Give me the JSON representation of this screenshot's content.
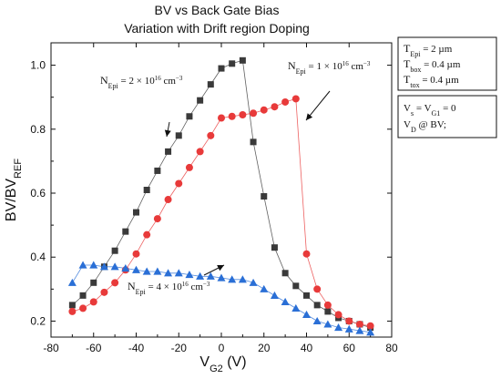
{
  "chart_data": {
    "type": "line",
    "title": "BV vs Back Gate Bias",
    "subtitle": "Variation with Drift region Doping",
    "xlabel": {
      "main": "V",
      "sub": "G2",
      "unit": " (V)"
    },
    "ylabel": {
      "main": "BV/BV",
      "sub": "REF"
    },
    "xlim": [
      -80,
      80
    ],
    "ylim": [
      0.15,
      1.07
    ],
    "xticks": [
      -80,
      -60,
      -40,
      -20,
      0,
      20,
      40,
      60,
      80
    ],
    "yticks": [
      0.2,
      0.4,
      0.6,
      0.8,
      1.0
    ],
    "ytick_labels": [
      "0.2",
      "0.4",
      "0.6",
      "0.8",
      "1.0"
    ],
    "grid": false,
    "series": [
      {
        "id": "n2e16",
        "color": "#3a3a3a",
        "marker": "square",
        "x": [
          -70,
          -65,
          -60,
          -55,
          -50,
          -45,
          -40,
          -35,
          -30,
          -25,
          -20,
          -15,
          -10,
          -5,
          0,
          5,
          10,
          15,
          20,
          25,
          30,
          35,
          40,
          45,
          50,
          55,
          60,
          65,
          70
        ],
        "y": [
          0.25,
          0.28,
          0.32,
          0.37,
          0.42,
          0.48,
          0.54,
          0.61,
          0.67,
          0.73,
          0.78,
          0.84,
          0.89,
          0.94,
          0.99,
          1.005,
          1.015,
          0.76,
          0.59,
          0.43,
          0.35,
          0.31,
          0.28,
          0.25,
          0.23,
          0.21,
          0.2,
          0.19,
          0.18
        ]
      },
      {
        "id": "n1e16",
        "color": "#e83a3a",
        "marker": "circle",
        "x": [
          -70,
          -65,
          -60,
          -55,
          -50,
          -45,
          -40,
          -35,
          -30,
          -25,
          -20,
          -15,
          -10,
          -5,
          0,
          5,
          10,
          15,
          20,
          25,
          30,
          35,
          40,
          45,
          50,
          55,
          60,
          65,
          70
        ],
        "y": [
          0.23,
          0.24,
          0.26,
          0.29,
          0.32,
          0.36,
          0.41,
          0.47,
          0.52,
          0.58,
          0.63,
          0.68,
          0.73,
          0.78,
          0.835,
          0.84,
          0.845,
          0.85,
          0.86,
          0.87,
          0.885,
          0.895,
          0.41,
          0.3,
          0.25,
          0.22,
          0.2,
          0.19,
          0.185
        ]
      },
      {
        "id": "n4e16",
        "color": "#2a6fd6",
        "marker": "triangle",
        "x": [
          -70,
          -65,
          -60,
          -55,
          -50,
          -45,
          -40,
          -35,
          -30,
          -25,
          -20,
          -15,
          -10,
          -5,
          0,
          5,
          10,
          15,
          20,
          25,
          30,
          35,
          40,
          45,
          50,
          55,
          60,
          65,
          70
        ],
        "y": [
          0.32,
          0.375,
          0.375,
          0.37,
          0.37,
          0.365,
          0.36,
          0.355,
          0.355,
          0.35,
          0.35,
          0.345,
          0.34,
          0.34,
          0.335,
          0.33,
          0.33,
          0.32,
          0.3,
          0.28,
          0.26,
          0.24,
          0.22,
          0.2,
          0.19,
          0.18,
          0.175,
          0.17,
          0.165
        ]
      }
    ],
    "annotations": [
      {
        "id": "n2e16",
        "base": "N",
        "sub": "Epi",
        "text": " = 2 × 10",
        "sup": "16",
        "unit": " cm",
        "unitsup": "−3"
      },
      {
        "id": "n1e16",
        "base": "N",
        "sub": "Epi",
        "text": " = 1 × 10",
        "sup": "16",
        "unit": " cm",
        "unitsup": "−3"
      },
      {
        "id": "n4e16",
        "base": "N",
        "sub": "Epi",
        "text": " = 4 × 10",
        "sup": "16",
        "unit": " cm",
        "unitsup": "−3"
      }
    ],
    "params_box": [
      {
        "base": "T",
        "sub": "Epi",
        "value": "  =  2 µm"
      },
      {
        "base": "T",
        "sub": "box",
        "value": "  =  0.4 µm"
      },
      {
        "base": "T",
        "sub": "tox",
        "value": "  =  0.4 µm"
      }
    ],
    "bias_box": [
      {
        "parts": [
          {
            "t": "V"
          },
          {
            "t": "s",
            "sub": true
          },
          {
            "t": " = V"
          },
          {
            "t": "G1",
            "sub": true
          },
          {
            "t": " = 0"
          }
        ]
      },
      {
        "parts": [
          {
            "t": "V"
          },
          {
            "t": "D",
            "sub": true
          },
          {
            "t": " @ BV;"
          }
        ]
      }
    ]
  }
}
